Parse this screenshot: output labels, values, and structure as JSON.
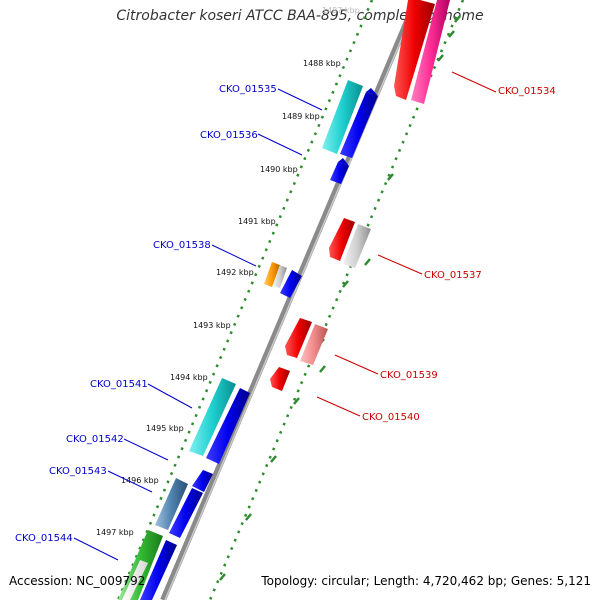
{
  "title": "Citrobacter koseri ATCC BAA-895, complete genome",
  "footer": {
    "accession": "Accession: NC_009792",
    "summary": "Topology: circular; Length: 4,720,462 bp; Genes: 5,121"
  },
  "colors": {
    "backbone": "#8a8a8a",
    "tick_major": "#2e8b2e",
    "label_left": "#0000cc",
    "label_right": "#cc0000"
  },
  "ticks": [
    "1487 kbp",
    "1488 kbp",
    "1489 kbp",
    "1490 kbp",
    "1491 kbp",
    "1492 kbp",
    "1493 kbp",
    "1494 kbp",
    "1495 kbp",
    "1496 kbp",
    "1497 kbp"
  ],
  "gene_labels_left": [
    "CKO_01535",
    "CKO_01536",
    "CKO_01538",
    "CKO_01541",
    "CKO_01542",
    "CKO_01543",
    "CKO_01544"
  ],
  "gene_labels_right": [
    "CKO_01534",
    "CKO_01537",
    "CKO_01539",
    "CKO_01540"
  ]
}
